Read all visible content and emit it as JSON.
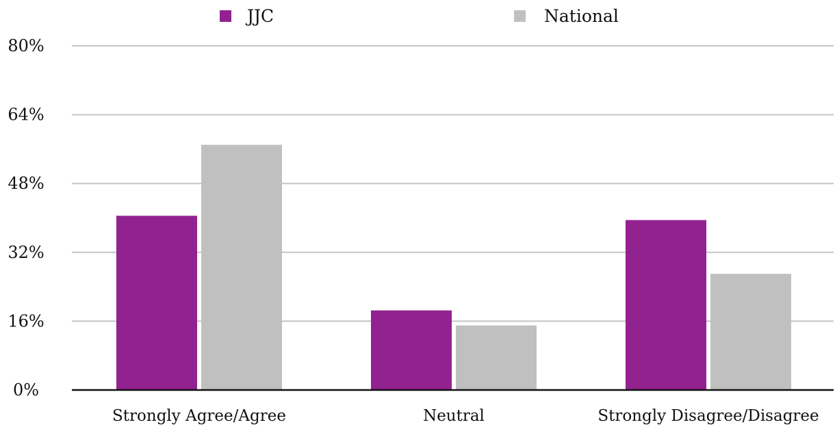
{
  "chart_data": {
    "type": "bar",
    "categories": [
      "Strongly Agree/Agree",
      "Neutral",
      "Strongly Disagree/Disagree"
    ],
    "series": [
      {
        "name": "JJC",
        "values": [
          40.5,
          18.5,
          39.5
        ],
        "color": "#92228f"
      },
      {
        "name": "National",
        "values": [
          57.0,
          15.0,
          27.0
        ],
        "color": "#c0c0c0"
      }
    ],
    "y_ticks": [
      "0%",
      "16%",
      "32%",
      "48%",
      "64%",
      "80%"
    ],
    "ylim": [
      0,
      80
    ],
    "grid": true,
    "legend_position": "top"
  }
}
